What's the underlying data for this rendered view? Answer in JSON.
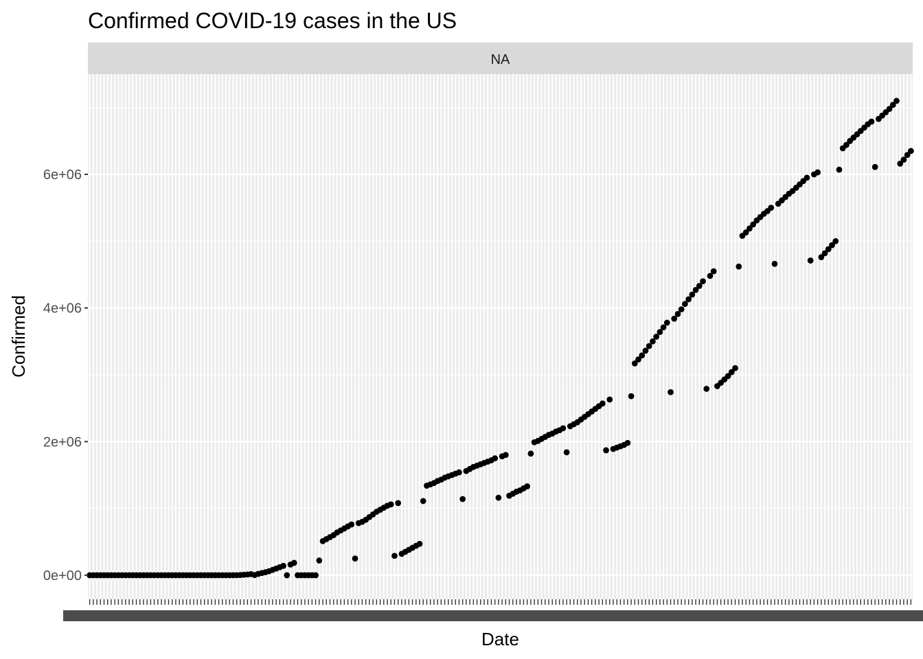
{
  "chart_data": {
    "type": "scatter",
    "title": "Confirmed COVID-19 cases in the US",
    "facet_label": "NA",
    "xlabel": "Date",
    "ylabel": "Confirmed",
    "y_ticks": [
      {
        "value": 0,
        "label": "0e+00"
      },
      {
        "value": 2000000,
        "label": "2e+06"
      },
      {
        "value": 4000000,
        "label": "4e+06"
      },
      {
        "value": 6000000,
        "label": "6e+06"
      }
    ],
    "ylim": [
      -360000,
      7500000
    ],
    "x_categories_count": 230,
    "x_tick_labels_legible": false,
    "grid": true,
    "panel_background": "#ebebeb",
    "strip_background": "#d9d9d9",
    "point_color": "#000000",
    "series": [
      {
        "points": [
          [
            0,
            0
          ],
          [
            1,
            0
          ],
          [
            2,
            0
          ],
          [
            3,
            0
          ],
          [
            4,
            0
          ],
          [
            5,
            0
          ],
          [
            6,
            0
          ],
          [
            7,
            0
          ],
          [
            8,
            0
          ],
          [
            9,
            0
          ],
          [
            10,
            0
          ],
          [
            11,
            0
          ],
          [
            12,
            0
          ],
          [
            13,
            0
          ],
          [
            14,
            0
          ],
          [
            15,
            0
          ],
          [
            16,
            0
          ],
          [
            17,
            0
          ],
          [
            18,
            0
          ],
          [
            19,
            0
          ],
          [
            20,
            0
          ],
          [
            21,
            0
          ],
          [
            22,
            0
          ],
          [
            23,
            0
          ],
          [
            24,
            0
          ],
          [
            25,
            0
          ],
          [
            26,
            0
          ],
          [
            27,
            0
          ],
          [
            28,
            0
          ],
          [
            29,
            0
          ],
          [
            30,
            0
          ],
          [
            31,
            0
          ],
          [
            32,
            0
          ],
          [
            33,
            0
          ],
          [
            34,
            0
          ],
          [
            35,
            0
          ],
          [
            36,
            0
          ],
          [
            37,
            0
          ],
          [
            38,
            0
          ],
          [
            39,
            100
          ],
          [
            40,
            300
          ],
          [
            41,
            1000
          ],
          [
            42,
            3000
          ],
          [
            43,
            7000
          ],
          [
            44,
            11000
          ],
          [
            45,
            16000
          ],
          [
            46,
            3000
          ],
          [
            47,
            20000
          ],
          [
            48,
            33000
          ],
          [
            49,
            45000
          ],
          [
            50,
            60000
          ],
          [
            51,
            80000
          ],
          [
            52,
            100000
          ],
          [
            53,
            120000
          ],
          [
            54,
            140000
          ],
          [
            55,
            0
          ],
          [
            56,
            160000
          ],
          [
            57,
            185000
          ],
          [
            58,
            0
          ],
          [
            59,
            0
          ],
          [
            60,
            0
          ],
          [
            61,
            0
          ],
          [
            62,
            0
          ],
          [
            63,
            0
          ],
          [
            64,
            220000
          ],
          [
            65,
            510000
          ],
          [
            66,
            540000
          ],
          [
            67,
            570000
          ],
          [
            68,
            600000
          ],
          [
            69,
            640000
          ],
          [
            70,
            670000
          ],
          [
            71,
            700000
          ],
          [
            72,
            730000
          ],
          [
            73,
            760000
          ],
          [
            74,
            250000
          ],
          [
            75,
            780000
          ],
          [
            76,
            800000
          ],
          [
            77,
            830000
          ],
          [
            78,
            870000
          ],
          [
            79,
            910000
          ],
          [
            80,
            950000
          ],
          [
            81,
            980000
          ],
          [
            82,
            1010000
          ],
          [
            83,
            1040000
          ],
          [
            84,
            1060000
          ],
          [
            85,
            290000
          ],
          [
            86,
            1080000
          ],
          [
            87,
            320000
          ],
          [
            88,
            350000
          ],
          [
            89,
            380000
          ],
          [
            90,
            410000
          ],
          [
            91,
            440000
          ],
          [
            92,
            470000
          ],
          [
            93,
            1110000
          ],
          [
            94,
            1340000
          ],
          [
            95,
            1360000
          ],
          [
            96,
            1380000
          ],
          [
            97,
            1410000
          ],
          [
            98,
            1430000
          ],
          [
            99,
            1460000
          ],
          [
            100,
            1480000
          ],
          [
            101,
            1500000
          ],
          [
            102,
            1520000
          ],
          [
            103,
            1540000
          ],
          [
            104,
            1140000
          ],
          [
            105,
            1560000
          ],
          [
            106,
            1590000
          ],
          [
            107,
            1620000
          ],
          [
            108,
            1640000
          ],
          [
            109,
            1660000
          ],
          [
            110,
            1680000
          ],
          [
            111,
            1700000
          ],
          [
            112,
            1720000
          ],
          [
            113,
            1750000
          ],
          [
            114,
            1160000
          ],
          [
            115,
            1780000
          ],
          [
            116,
            1800000
          ],
          [
            117,
            1190000
          ],
          [
            118,
            1220000
          ],
          [
            119,
            1250000
          ],
          [
            120,
            1270000
          ],
          [
            121,
            1300000
          ],
          [
            122,
            1330000
          ],
          [
            123,
            1820000
          ],
          [
            124,
            1990000
          ],
          [
            125,
            2010000
          ],
          [
            126,
            2040000
          ],
          [
            127,
            2070000
          ],
          [
            128,
            2100000
          ],
          [
            129,
            2120000
          ],
          [
            130,
            2150000
          ],
          [
            131,
            2170000
          ],
          [
            132,
            2200000
          ],
          [
            133,
            1840000
          ],
          [
            134,
            2230000
          ],
          [
            135,
            2260000
          ],
          [
            136,
            2290000
          ],
          [
            137,
            2330000
          ],
          [
            138,
            2370000
          ],
          [
            139,
            2410000
          ],
          [
            140,
            2450000
          ],
          [
            141,
            2490000
          ],
          [
            142,
            2530000
          ],
          [
            143,
            2570000
          ],
          [
            144,
            1870000
          ],
          [
            145,
            2630000
          ],
          [
            146,
            1890000
          ],
          [
            147,
            1910000
          ],
          [
            148,
            1930000
          ],
          [
            149,
            1950000
          ],
          [
            150,
            1980000
          ],
          [
            151,
            2680000
          ],
          [
            152,
            3170000
          ],
          [
            153,
            3230000
          ],
          [
            154,
            3290000
          ],
          [
            155,
            3360000
          ],
          [
            156,
            3430000
          ],
          [
            157,
            3500000
          ],
          [
            158,
            3570000
          ],
          [
            159,
            3640000
          ],
          [
            160,
            3710000
          ],
          [
            161,
            3780000
          ],
          [
            162,
            2740000
          ],
          [
            163,
            3840000
          ],
          [
            164,
            3910000
          ],
          [
            165,
            3980000
          ],
          [
            166,
            4060000
          ],
          [
            167,
            4130000
          ],
          [
            168,
            4200000
          ],
          [
            169,
            4270000
          ],
          [
            170,
            4330000
          ],
          [
            171,
            4400000
          ],
          [
            172,
            2790000
          ],
          [
            173,
            4480000
          ],
          [
            174,
            4550000
          ],
          [
            175,
            2830000
          ],
          [
            176,
            2880000
          ],
          [
            177,
            2930000
          ],
          [
            178,
            2980000
          ],
          [
            179,
            3040000
          ],
          [
            180,
            3100000
          ],
          [
            181,
            4620000
          ],
          [
            182,
            5080000
          ],
          [
            183,
            5130000
          ],
          [
            184,
            5190000
          ],
          [
            185,
            5250000
          ],
          [
            186,
            5310000
          ],
          [
            187,
            5360000
          ],
          [
            188,
            5410000
          ],
          [
            189,
            5450000
          ],
          [
            190,
            5500000
          ],
          [
            191,
            4660000
          ],
          [
            192,
            5560000
          ],
          [
            193,
            5610000
          ],
          [
            194,
            5660000
          ],
          [
            195,
            5710000
          ],
          [
            196,
            5750000
          ],
          [
            197,
            5800000
          ],
          [
            198,
            5850000
          ],
          [
            199,
            5900000
          ],
          [
            200,
            5950000
          ],
          [
            201,
            4710000
          ],
          [
            202,
            6000000
          ],
          [
            203,
            6030000
          ],
          [
            204,
            4760000
          ],
          [
            205,
            4820000
          ],
          [
            206,
            4880000
          ],
          [
            207,
            4940000
          ],
          [
            208,
            5000000
          ],
          [
            209,
            6070000
          ],
          [
            210,
            6390000
          ],
          [
            211,
            6440000
          ],
          [
            212,
            6500000
          ],
          [
            213,
            6550000
          ],
          [
            214,
            6600000
          ],
          [
            215,
            6650000
          ],
          [
            216,
            6700000
          ],
          [
            217,
            6750000
          ],
          [
            218,
            6790000
          ],
          [
            219,
            6110000
          ],
          [
            220,
            6830000
          ],
          [
            221,
            6880000
          ],
          [
            222,
            6930000
          ],
          [
            223,
            6980000
          ],
          [
            224,
            7040000
          ],
          [
            225,
            7100000
          ],
          [
            226,
            6160000
          ],
          [
            227,
            6220000
          ],
          [
            228,
            6290000
          ],
          [
            229,
            6350000
          ]
        ]
      }
    ]
  }
}
